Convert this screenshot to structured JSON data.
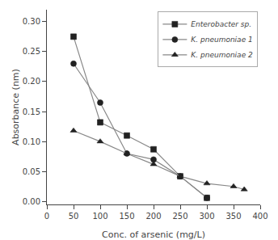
{
  "chart_data": {
    "type": "line",
    "xlabel": "Conc. of arsenic (mg/L)",
    "ylabel": "Absorbance (nm)",
    "series": [
      {
        "name": "Enterobacter sp.",
        "color": "#888888",
        "marker": "square",
        "x": [
          50,
          100,
          150,
          200,
          250,
          300
        ],
        "values": [
          0.275,
          0.132,
          0.11,
          0.087,
          0.042,
          0.006
        ]
      },
      {
        "name": "K. pneumoniae 1",
        "color": "#888888",
        "marker": "circle",
        "x": [
          50,
          100,
          150,
          200,
          250,
          300
        ],
        "values": [
          0.23,
          0.165,
          0.08,
          0.07,
          0.042,
          0.006
        ]
      },
      {
        "name": "K. pneumoniae 2",
        "color": "#888888",
        "marker": "triangle-up",
        "x": [
          50,
          100,
          150,
          200,
          250,
          300,
          350,
          370
        ],
        "values": [
          0.118,
          0.1,
          0.08,
          0.062,
          0.042,
          0.03,
          0.025,
          0.02
        ]
      }
    ],
    "xlim": [
      0,
      400
    ],
    "ylim": [
      -0.005,
      0.32
    ],
    "xticks": [
      0,
      50,
      100,
      150,
      200,
      250,
      300,
      350,
      400
    ],
    "yticks": [
      {
        "value": 0,
        "label": "0.00"
      },
      0.05,
      {
        "value": 0.1,
        "label": "0.10"
      },
      0.15,
      {
        "value": 0.2,
        "label": "0.20"
      },
      0.25,
      {
        "value": 0.3,
        "label": "0.30"
      }
    ],
    "legend": "upper right",
    "grid": false
  }
}
